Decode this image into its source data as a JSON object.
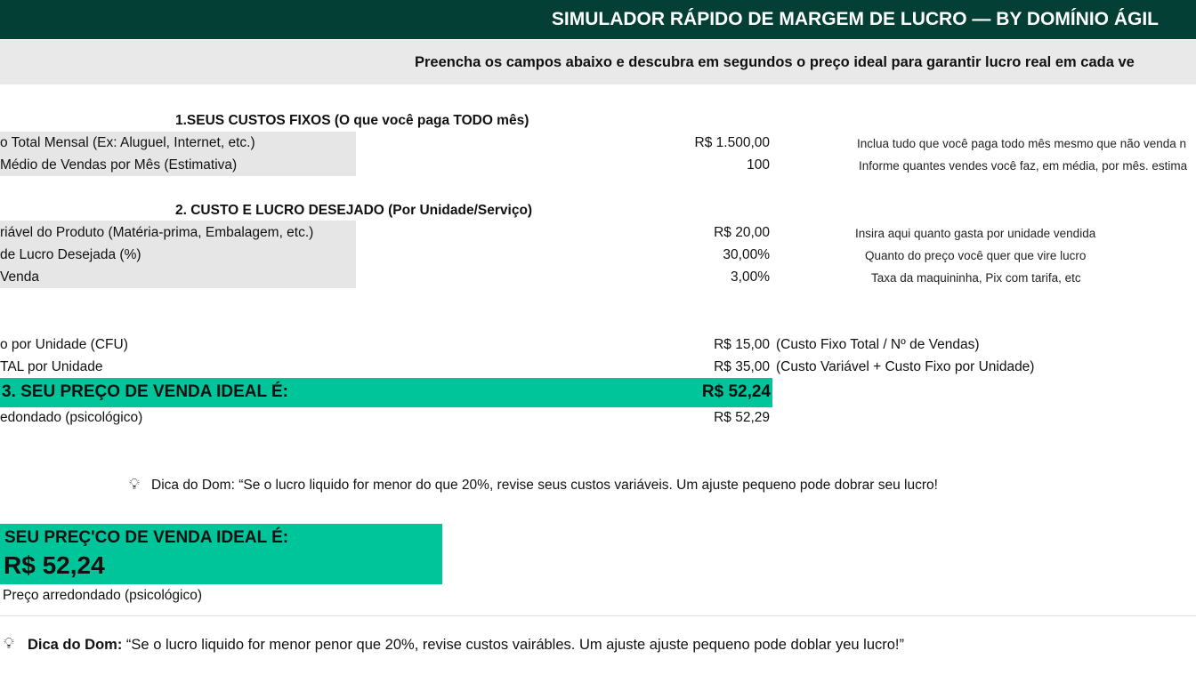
{
  "header": {
    "title": "SIMULADOR RÁPIDO DE MARGEM DE LUCRO — BY DOMÍNIO ÁGIL",
    "bg_color": "#033f35"
  },
  "subtitle": "Preencha os campos abaixo e descubra em segundos o preço ideal para garantir lucro real em cada ve",
  "section1": {
    "heading": "1.SEUS CUSTOS FIXOS (O que você paga TODO mês)",
    "rows": [
      {
        "label": "o Total Mensal (Ex: Aluguel, Internet, etc.)",
        "value": "R$ 1.500,00",
        "hint": "Inclua tudo que você paga todo mês mesmo que não venda n"
      },
      {
        "label": "Médio de Vendas por Mês (Estimativa)",
        "value": "100",
        "hint": "Informe quantes vendes você faz, em média, por mês. estima"
      }
    ]
  },
  "section2": {
    "heading": "2. CUSTO E LUCRO DESEJADO (Por Unidade/Serviço)",
    "rows": [
      {
        "label": "riável do Produto (Matéria-prima, Embalagem, etc.)",
        "value": "R$ 20,00",
        "hint": "Insira aqui quanto gasta por unidade vendida"
      },
      {
        "label": "de Lucro Desejada (%)",
        "value": "30,00%",
        "hint": "Quanto do preço você quer que vire lucro"
      },
      {
        "label": " Venda",
        "value": "3,00%",
        "hint": "Taxa da maquininha, Pix com tarifa, etc"
      }
    ]
  },
  "calc": [
    {
      "label": "o por Unidade (CFU)",
      "value": "R$ 15,00",
      "note": "(Custo Fixo Total / Nº de Vendas)"
    },
    {
      "label": "TAL por Unidade",
      "value": "R$ 35,00",
      "note": "(Custo Variável + Custo Fixo por Unidade)"
    }
  ],
  "result": {
    "label": "3. SEU PREÇO DE VENDA IDEAL É:",
    "value": "R$ 52,24",
    "accent_color": "#00c49a"
  },
  "rounded": {
    "label": "edondado (psicológico)",
    "value": "R$ 52,29"
  },
  "tip1": {
    "icon": "lightbulb-icon",
    "text": "Dica do Dom: “Se o lucro liquido for menor do que 20%, revise seus custos variáveis. Um ajuste pequeno pode dobrar seu lucro!"
  },
  "card": {
    "label": "SEU PREÇ'CO DE VENDA IDEAL É:",
    "value": "R$ 52,24",
    "rounded_label": "Preço arredondado (psicológico)"
  },
  "tip2": {
    "icon": "lightbulb-icon",
    "prefix": "Dica do Dom:",
    "text": " “Se o lucro liquido for menor penor que 20%, revise custos vairábles. Um ajuste ajuste pequeno pode doblar yeu lucro!”"
  }
}
